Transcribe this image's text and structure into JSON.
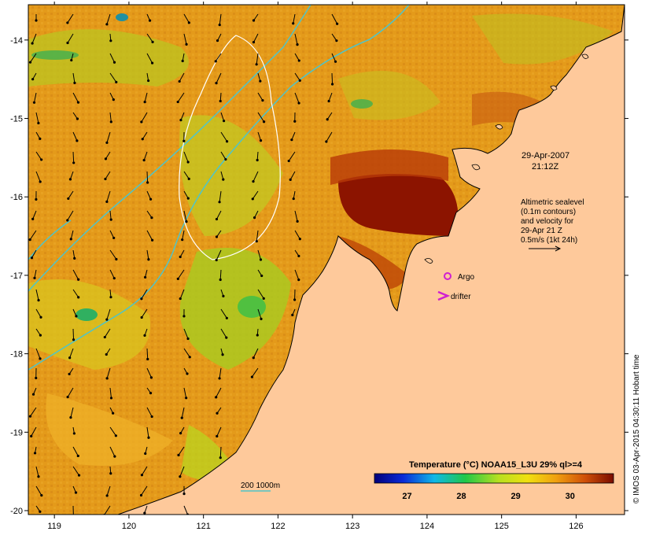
{
  "map": {
    "lon_ticks": [
      "119",
      "120",
      "121",
      "122",
      "123",
      "124",
      "125",
      "126"
    ],
    "lat_ticks": [
      "-14",
      "-15",
      "-16",
      "-17",
      "-18",
      "-19",
      "-20"
    ],
    "lon_range": [
      118.65,
      126.65
    ],
    "lat_range": [
      -20.05,
      -13.55
    ]
  },
  "annotations": {
    "date_line1": "29-Apr-2007",
    "date_line2": "21:12Z",
    "altimetry_line1": "Altimetric sealevel",
    "altimetry_line2": "(0.1m contours)",
    "altimetry_line3": "and velocity for",
    "altimetry_line4": "29-Apr 21 Z",
    "altimetry_line5": "0.5m/s (1kt 24h)",
    "argo_label": "Argo",
    "drifter_label": "drifter",
    "depth_legend": "200  1000m"
  },
  "colorbar": {
    "title": "Temperature (°C) NOAA15_L3U 29% ql>=4",
    "ticks": [
      "27",
      "28",
      "29",
      "30"
    ],
    "tick_values": [
      27,
      28,
      29,
      30
    ],
    "range": [
      26.4,
      30.8
    ]
  },
  "credit": "© IMOS 03-Apr-2015 04:30:11 Hobart time",
  "colors": {
    "land": "#fec99b",
    "sst_base": "#e49a1a",
    "sst_hot": "#8c1400",
    "sst_cool": "#c8d81e",
    "isobath": "#4fc4c8",
    "argo": "#d020d0",
    "drifter": "#d020d0"
  },
  "argo_position": {
    "lon": 124.3,
    "lat": -17.03
  },
  "drifter_position": {
    "lon": 124.2,
    "lat": -17.3
  }
}
